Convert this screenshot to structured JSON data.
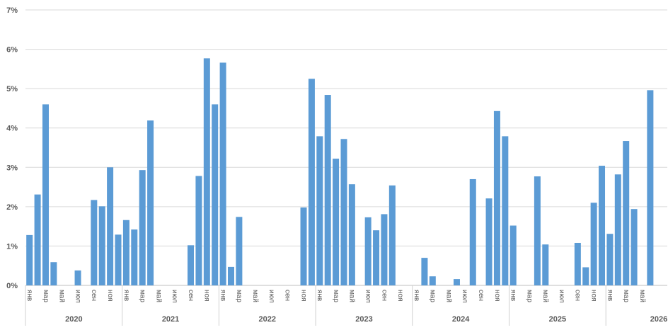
{
  "chart_data": {
    "type": "bar",
    "title": "",
    "xlabel": "",
    "ylabel": "",
    "ylim": [
      0,
      7
    ],
    "y_ticks": [
      "0%",
      "1%",
      "2%",
      "3%",
      "4%",
      "5%",
      "6%",
      "7%"
    ],
    "grid": true,
    "legend": "none",
    "bar_color": "#5b9bd5",
    "years": [
      "2020",
      "2021",
      "2022",
      "2023",
      "2024",
      "2025",
      "2026"
    ],
    "month_labels": [
      "янв",
      "",
      "мар",
      "",
      "май",
      "",
      "июл",
      "",
      "сен",
      "",
      "ноя",
      ""
    ],
    "values": [
      1.28,
      2.31,
      4.6,
      0.59,
      0,
      0,
      0.38,
      0,
      2.17,
      2.01,
      3.0,
      1.29,
      1.66,
      1.42,
      2.93,
      4.19,
      0,
      0,
      0,
      0,
      1.02,
      2.78,
      5.77,
      4.6,
      5.66,
      0.47,
      1.74,
      0,
      0,
      0,
      0,
      0,
      0,
      0,
      1.98,
      5.25,
      3.79,
      4.84,
      3.22,
      3.72,
      2.57,
      0,
      1.73,
      1.4,
      1.81,
      2.54,
      0,
      0,
      0,
      0.7,
      0.23,
      0,
      0,
      0.16,
      0,
      2.7,
      0,
      2.21,
      4.43,
      3.79,
      1.52,
      0,
      0,
      2.77,
      1.04,
      0,
      0,
      0,
      1.08,
      0.46,
      2.1,
      3.04,
      1.31,
      2.82,
      3.67,
      1.94,
      0,
      4.96
    ]
  }
}
